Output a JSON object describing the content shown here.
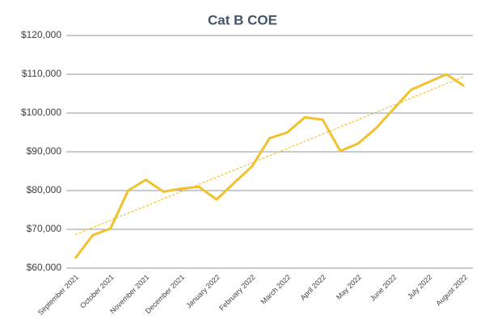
{
  "chart_data": {
    "type": "line",
    "title": "Cat B COE",
    "categories": [
      "September 2021",
      null,
      "October 2021",
      null,
      "November 2021",
      null,
      "December 2021",
      null,
      "January 2022",
      null,
      "February 2022",
      null,
      "March 2022",
      null,
      "April 2022",
      null,
      "May 2022",
      null,
      "June 2022",
      null,
      "July 2022",
      null,
      "August 2022"
    ],
    "series": [
      {
        "name": "Cat B COE",
        "color": "#f2c12e",
        "values": [
          62500,
          68500,
          70200,
          80000,
          82800,
          79700,
          80500,
          81000,
          77700,
          82000,
          86200,
          93500,
          95000,
          98900,
          98300,
          90200,
          92100,
          96000,
          101000,
          106000,
          108000,
          110000,
          107000
        ]
      }
    ],
    "ylim": [
      60000,
      120000
    ],
    "yticks": [
      {
        "value": 60000,
        "label": "$60,000"
      },
      {
        "value": 70000,
        "label": "$70,000"
      },
      {
        "value": 80000,
        "label": "$80,000"
      },
      {
        "value": 90000,
        "label": "$90,000"
      },
      {
        "value": 100000,
        "label": "$100,000"
      },
      {
        "value": 110000,
        "label": "$110,000"
      },
      {
        "value": 120000,
        "label": "$120,000"
      }
    ],
    "grid": true,
    "trendline": true
  }
}
